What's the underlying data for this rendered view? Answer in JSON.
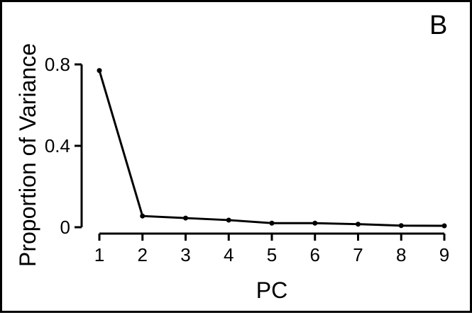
{
  "figure": {
    "panel_label": "B"
  },
  "chart_data": {
    "type": "line",
    "x": [
      1,
      2,
      3,
      4,
      5,
      6,
      7,
      8,
      9
    ],
    "series": [
      {
        "values": [
          0.77,
          0.055,
          0.045,
          0.035,
          0.02,
          0.02,
          0.015,
          0.008,
          0.007
        ]
      }
    ],
    "xlabel": "PC",
    "ylabel": "Proportion of Variance",
    "xlim": [
      1,
      9
    ],
    "ylim": [
      0,
      0.8
    ],
    "xticks": [
      "1",
      "2",
      "3",
      "4",
      "5",
      "6",
      "7",
      "8",
      "9"
    ],
    "yticks": [
      "0",
      "0.4",
      "0.8"
    ],
    "yticks_values": [
      0,
      0.4,
      0.8
    ],
    "grid": false,
    "legend": "none",
    "colors": {
      "line": "#000000",
      "axis": "#000000"
    }
  }
}
